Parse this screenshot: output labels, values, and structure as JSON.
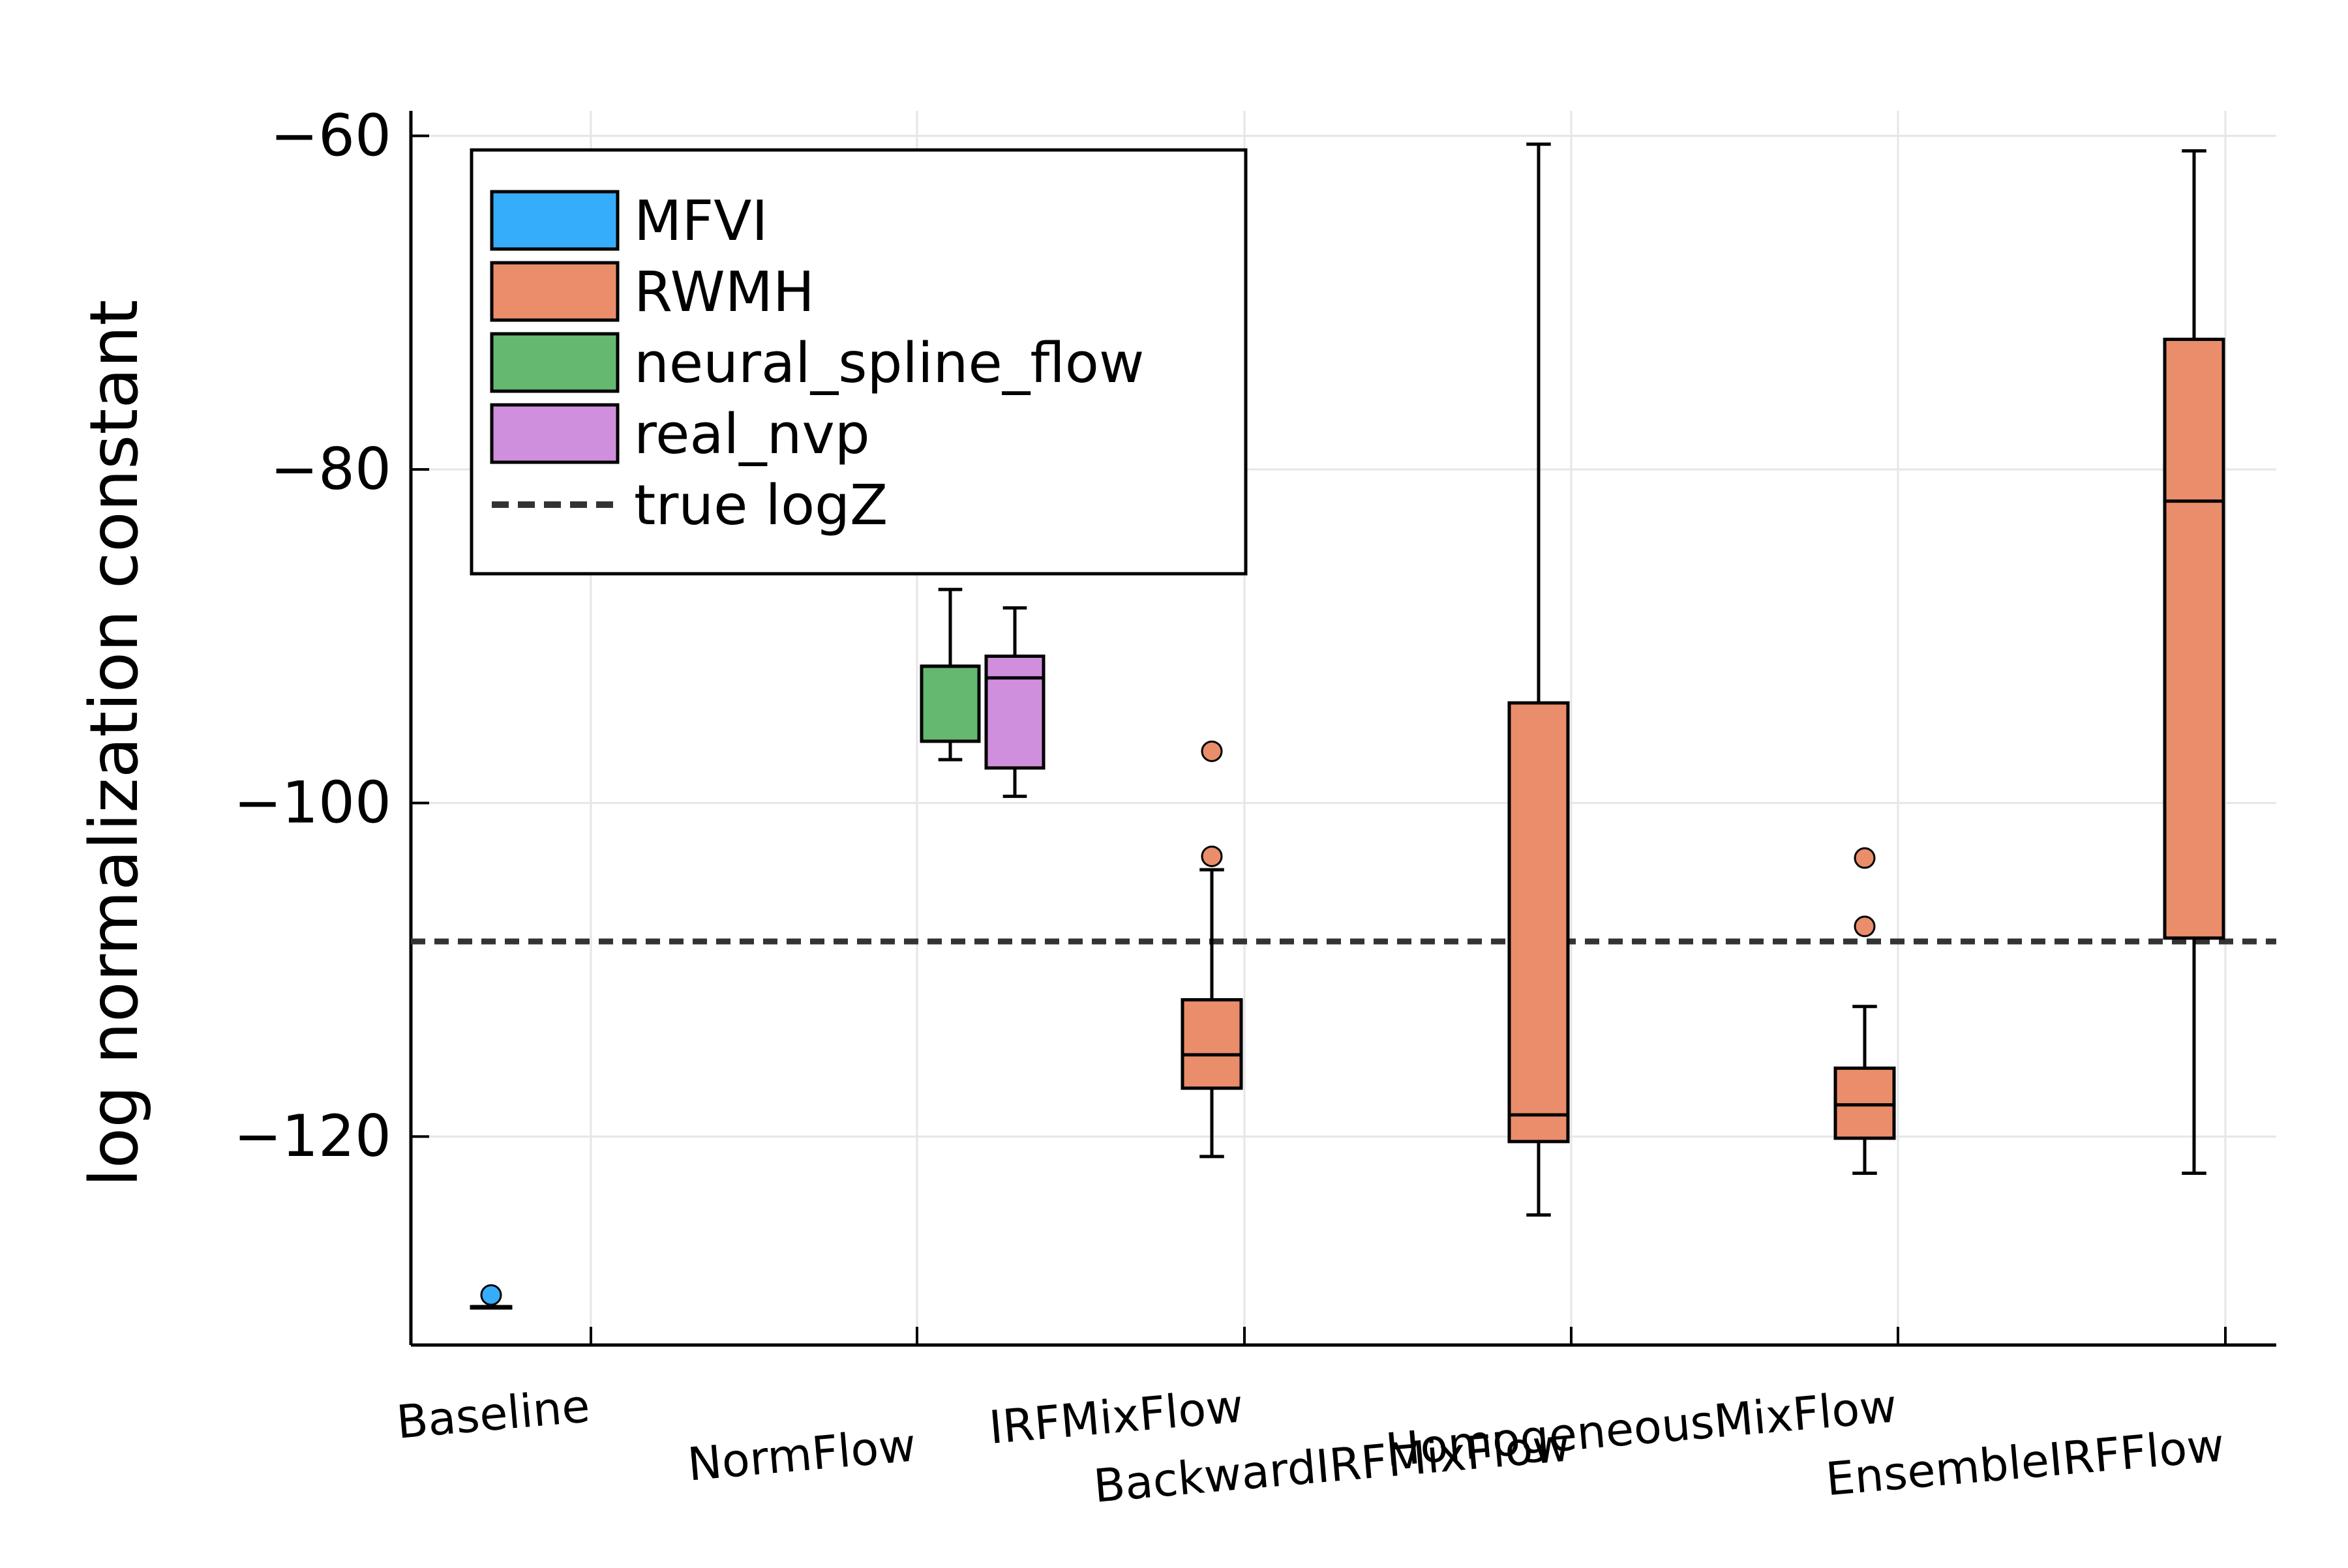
{
  "chart_data": {
    "type": "box",
    "title": "",
    "xlabel": "",
    "ylabel": "log normalization constant",
    "categories": [
      "Baseline",
      "NormFlow",
      "IRFMixFlow",
      "BackwardIRFMixFlow",
      "HomogeneousMixFlow",
      "EnsembleIRFFlow"
    ],
    "ylim": [
      -132.5,
      -58.5
    ],
    "yticks": [
      -60,
      -80,
      -100,
      -120
    ],
    "ytick_labels": [
      "−60",
      "−80",
      "−100",
      "−120"
    ],
    "grid": true,
    "legend_position": "top-left",
    "reference_line": {
      "name": "true logZ",
      "value": -108.3,
      "style": "dashed",
      "color": "#333333"
    },
    "series": [
      {
        "name": "MFVI",
        "color": "#35adfa",
        "boxes": [
          {
            "category": "Baseline",
            "min": -130.2,
            "q1": -130.2,
            "median": -130.2,
            "q3": -130.2,
            "max": -130.2,
            "outliers": [
              -129.5
            ]
          }
        ]
      },
      {
        "name": "RWMH",
        "color": "#e98d6b",
        "boxes": [
          {
            "category": "IRFMixFlow",
            "min": -121.2,
            "q1": -117.1,
            "median": -115.1,
            "q3": -111.8,
            "max": -104.0,
            "outliers": [
              -103.2,
              -96.9
            ]
          },
          {
            "category": "HomogeneousMixFlow",
            "min": -124.7,
            "q1": -120.3,
            "median": -118.7,
            "q3": -94.0,
            "max": -60.5,
            "outliers": []
          },
          {
            "category": "EnsembleIRFFlow",
            "min": -122.2,
            "q1": -120.1,
            "median": -118.1,
            "q3": -115.9,
            "max": -112.2,
            "outliers": [
              -107.4,
              -103.3
            ]
          },
          {
            "category": "EnsembleIRFFlow",
            "min": -122.2,
            "q1": -108.1,
            "median": -81.9,
            "q3": -72.2,
            "max": -60.9,
            "outliers": []
          }
        ]
      },
      {
        "name": "neural_spline_flow",
        "color": "#64b86f",
        "boxes": [
          {
            "category": "NormFlow",
            "min": -97.4,
            "q1": -96.3,
            "median": -91.8,
            "q3": -91.8,
            "max": -87.2,
            "outliers": []
          }
        ]
      },
      {
        "name": "real_nvp",
        "color": "#d08fdd",
        "boxes": [
          {
            "category": "NormFlow",
            "min": -99.6,
            "q1": -97.9,
            "median": -92.5,
            "q3": -91.2,
            "max": -88.3,
            "outliers": []
          }
        ]
      }
    ]
  }
}
